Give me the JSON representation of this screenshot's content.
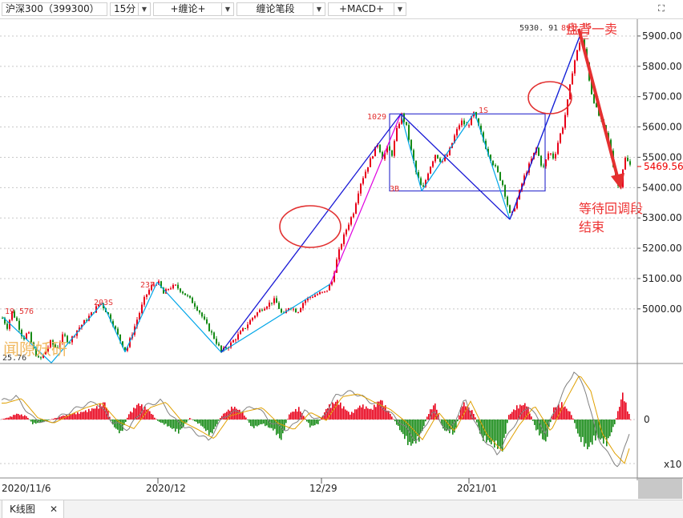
{
  "toolbar": {
    "symbol": "沪深300（399300）",
    "period": "15分",
    "indicator1": "+缠论+",
    "indicator2": "缠论笔段",
    "indicator3": "+MACD+",
    "dropdown_icon": "chevron-down-icon",
    "fullscreen_icon": "fullscreen-icon"
  },
  "tabs": [
    {
      "label": "K线图",
      "close_icon": "close-icon"
    }
  ],
  "colors": {
    "up": "#e8001a",
    "down": "#168a16",
    "bi_line": "#00a6e8",
    "duan_line": "#1a1ad6",
    "bi_magenta": "#e000e0",
    "zhongshu_box": "#3a3ad0",
    "annotation_red": "#e23030",
    "dif": "#808080",
    "dea": "#e0a000"
  },
  "chart_data": {
    "type": "candlestick",
    "title": "",
    "x_tick_labels": [
      "2020/11/6",
      "2020/12",
      "12/29",
      "2021/01"
    ],
    "y_ticks": [
      5000,
      5100,
      5200,
      5300,
      5400,
      5500,
      5600,
      5700,
      5800,
      5900
    ],
    "y_tick_labels": [
      "5000.00",
      "5100.00",
      "5200.00",
      "5300.00",
      "5400.00",
      "5500.00",
      "5600.00",
      "5700.00",
      "5800.00",
      "5900.00"
    ],
    "ylim": [
      4820,
      5950
    ],
    "grid": true,
    "last_price": 5469.56,
    "last_price_label": "5469.56",
    "price_path": [
      [
        0,
        4980
      ],
      [
        8,
        4940
      ],
      [
        14,
        4990
      ],
      [
        20,
        4960
      ],
      [
        28,
        4900
      ],
      [
        34,
        4925
      ],
      [
        40,
        4870
      ],
      [
        48,
        4830
      ],
      [
        55,
        4855
      ],
      [
        62,
        4890
      ],
      [
        70,
        4870
      ],
      [
        78,
        4915
      ],
      [
        85,
        4890
      ],
      [
        95,
        4930
      ],
      [
        105,
        4960
      ],
      [
        115,
        4990
      ],
      [
        124,
        5022
      ],
      [
        132,
        4990
      ],
      [
        140,
        4950
      ],
      [
        148,
        4900
      ],
      [
        156,
        4860
      ],
      [
        164,
        4920
      ],
      [
        172,
        4980
      ],
      [
        180,
        5040
      ],
      [
        188,
        5075
      ],
      [
        196,
        5090
      ],
      [
        203,
        5050
      ],
      [
        210,
        5070
      ],
      [
        218,
        5075
      ],
      [
        225,
        5060
      ],
      [
        233,
        5040
      ],
      [
        240,
        5020
      ],
      [
        248,
        4990
      ],
      [
        256,
        4950
      ],
      [
        265,
        4910
      ],
      [
        275,
        4860
      ],
      [
        285,
        4880
      ],
      [
        295,
        4910
      ],
      [
        305,
        4940
      ],
      [
        315,
        4975
      ],
      [
        325,
        5000
      ],
      [
        333,
        5015
      ],
      [
        342,
        5030
      ],
      [
        352,
        4975
      ],
      [
        360,
        5010
      ],
      [
        370,
        4990
      ],
      [
        378,
        5025
      ],
      [
        386,
        5040
      ],
      [
        396,
        5050
      ],
      [
        405,
        5055
      ],
      [
        413,
        5090
      ],
      [
        418,
        5150
      ],
      [
        424,
        5210
      ],
      [
        432,
        5270
      ],
      [
        440,
        5320
      ],
      [
        448,
        5410
      ],
      [
        456,
        5460
      ],
      [
        464,
        5510
      ],
      [
        470,
        5545
      ],
      [
        476,
        5500
      ],
      [
        482,
        5530
      ],
      [
        488,
        5510
      ],
      [
        494,
        5590
      ],
      [
        500,
        5640
      ],
      [
        506,
        5600
      ],
      [
        512,
        5520
      ],
      [
        518,
        5450
      ],
      [
        526,
        5390
      ],
      [
        534,
        5460
      ],
      [
        542,
        5510
      ],
      [
        550,
        5485
      ],
      [
        558,
        5510
      ],
      [
        566,
        5570
      ],
      [
        574,
        5620
      ],
      [
        582,
        5600
      ],
      [
        590,
        5645
      ],
      [
        596,
        5600
      ],
      [
        604,
        5540
      ],
      [
        610,
        5500
      ],
      [
        618,
        5460
      ],
      [
        626,
        5410
      ],
      [
        636,
        5300
      ],
      [
        644,
        5360
      ],
      [
        652,
        5430
      ],
      [
        660,
        5480
      ],
      [
        668,
        5530
      ],
      [
        676,
        5460
      ],
      [
        684,
        5520
      ],
      [
        690,
        5495
      ],
      [
        696,
        5560
      ],
      [
        702,
        5610
      ],
      [
        708,
        5700
      ],
      [
        714,
        5800
      ],
      [
        720,
        5860
      ],
      [
        724,
        5900
      ],
      [
        730,
        5830
      ],
      [
        736,
        5720
      ],
      [
        744,
        5650
      ],
      [
        752,
        5600
      ],
      [
        760,
        5540
      ],
      [
        766,
        5440
      ],
      [
        772,
        5390
      ],
      [
        778,
        5500
      ],
      [
        786,
        5470
      ]
    ],
    "bi_points": [
      [
        4,
        4972
      ],
      [
        64,
        4822
      ],
      [
        128,
        5020
      ],
      [
        156,
        4858
      ],
      [
        196,
        5088
      ],
      [
        276,
        4857
      ],
      [
        412,
        5082
      ],
      [
        500,
        5643
      ],
      [
        526,
        5389
      ],
      [
        592,
        5648
      ],
      [
        636,
        5295
      ],
      [
        724,
        5905
      ]
    ],
    "duan_points": [
      [
        276,
        4857
      ],
      [
        500,
        5643
      ],
      [
        636,
        5295
      ],
      [
        724,
        5905
      ]
    ],
    "zhongshu": {
      "x1": 486,
      "x2": 680,
      "top": 5643,
      "bottom": 5389
    },
    "annotations": [
      {
        "text": "5930. 91"
      },
      {
        "text": "891"
      },
      {
        "text": "1S"
      },
      {
        "text": "三"
      },
      {
        "text": "1029"
      },
      {
        "text": "1S"
      },
      {
        "text": "3B"
      },
      {
        "text": "237"
      },
      {
        "text": "203S"
      },
      {
        "text": "19"
      },
      {
        "text": "576"
      },
      {
        "text": "25.76"
      }
    ],
    "callouts": [
      {
        "text": "盘背一卖"
      },
      {
        "text": "等待回调段"
      },
      {
        "text": "结束"
      }
    ],
    "watermark": "闻隙妖研",
    "macd": {
      "zero_label": "0",
      "unit_label": "x10",
      "hist_profile": [
        [
          0,
          0
        ],
        [
          10,
          3
        ],
        [
          20,
          8
        ],
        [
          32,
          5
        ],
        [
          40,
          -6
        ],
        [
          52,
          -4
        ],
        [
          62,
          0
        ],
        [
          80,
          6
        ],
        [
          100,
          10
        ],
        [
          118,
          16
        ],
        [
          130,
          24
        ],
        [
          140,
          -8
        ],
        [
          150,
          -20
        ],
        [
          160,
          8
        ],
        [
          172,
          22
        ],
        [
          184,
          14
        ],
        [
          196,
          -2
        ],
        [
          210,
          -10
        ],
        [
          222,
          -18
        ],
        [
          236,
          2
        ],
        [
          250,
          -8
        ],
        [
          262,
          -22
        ],
        [
          276,
          6
        ],
        [
          290,
          18
        ],
        [
          302,
          10
        ],
        [
          314,
          -12
        ],
        [
          326,
          -6
        ],
        [
          340,
          -14
        ],
        [
          350,
          -28
        ],
        [
          360,
          8
        ],
        [
          372,
          16
        ],
        [
          386,
          -10
        ],
        [
          396,
          -6
        ],
        [
          408,
          18
        ],
        [
          420,
          26
        ],
        [
          436,
          8
        ],
        [
          450,
          20
        ],
        [
          462,
          14
        ],
        [
          474,
          28
        ],
        [
          486,
          8
        ],
        [
          498,
          -14
        ],
        [
          510,
          -36
        ],
        [
          522,
          -28
        ],
        [
          534,
          10
        ],
        [
          542,
          22
        ],
        [
          552,
          -14
        ],
        [
          566,
          -20
        ],
        [
          576,
          24
        ],
        [
          590,
          10
        ],
        [
          600,
          -26
        ],
        [
          614,
          -34
        ],
        [
          626,
          -42
        ],
        [
          634,
          6
        ],
        [
          644,
          18
        ],
        [
          656,
          22
        ],
        [
          668,
          -14
        ],
        [
          680,
          -32
        ],
        [
          690,
          16
        ],
        [
          700,
          22
        ],
        [
          712,
          8
        ],
        [
          722,
          -26
        ],
        [
          732,
          -40
        ],
        [
          744,
          -24
        ],
        [
          756,
          -34
        ],
        [
          766,
          -6
        ],
        [
          776,
          36
        ],
        [
          786,
          0
        ]
      ],
      "dif_profile": [
        [
          0,
          36
        ],
        [
          20,
          46
        ],
        [
          40,
          4
        ],
        [
          60,
          -8
        ],
        [
          80,
          10
        ],
        [
          100,
          26
        ],
        [
          120,
          36
        ],
        [
          140,
          -4
        ],
        [
          160,
          -20
        ],
        [
          180,
          26
        ],
        [
          200,
          38
        ],
        [
          220,
          -4
        ],
        [
          240,
          -22
        ],
        [
          260,
          -42
        ],
        [
          280,
          8
        ],
        [
          300,
          18
        ],
        [
          320,
          26
        ],
        [
          340,
          -8
        ],
        [
          360,
          -22
        ],
        [
          380,
          16
        ],
        [
          400,
          -2
        ],
        [
          420,
          50
        ],
        [
          440,
          56
        ],
        [
          460,
          38
        ],
        [
          480,
          22
        ],
        [
          500,
          -6
        ],
        [
          520,
          -44
        ],
        [
          540,
          16
        ],
        [
          560,
          -26
        ],
        [
          580,
          40
        ],
        [
          600,
          -32
        ],
        [
          620,
          -70
        ],
        [
          640,
          -14
        ],
        [
          660,
          30
        ],
        [
          680,
          -26
        ],
        [
          700,
          46
        ],
        [
          716,
          98
        ],
        [
          730,
          62
        ],
        [
          744,
          -30
        ],
        [
          760,
          -74
        ],
        [
          772,
          -96
        ],
        [
          786,
          -20
        ]
      ]
    }
  }
}
